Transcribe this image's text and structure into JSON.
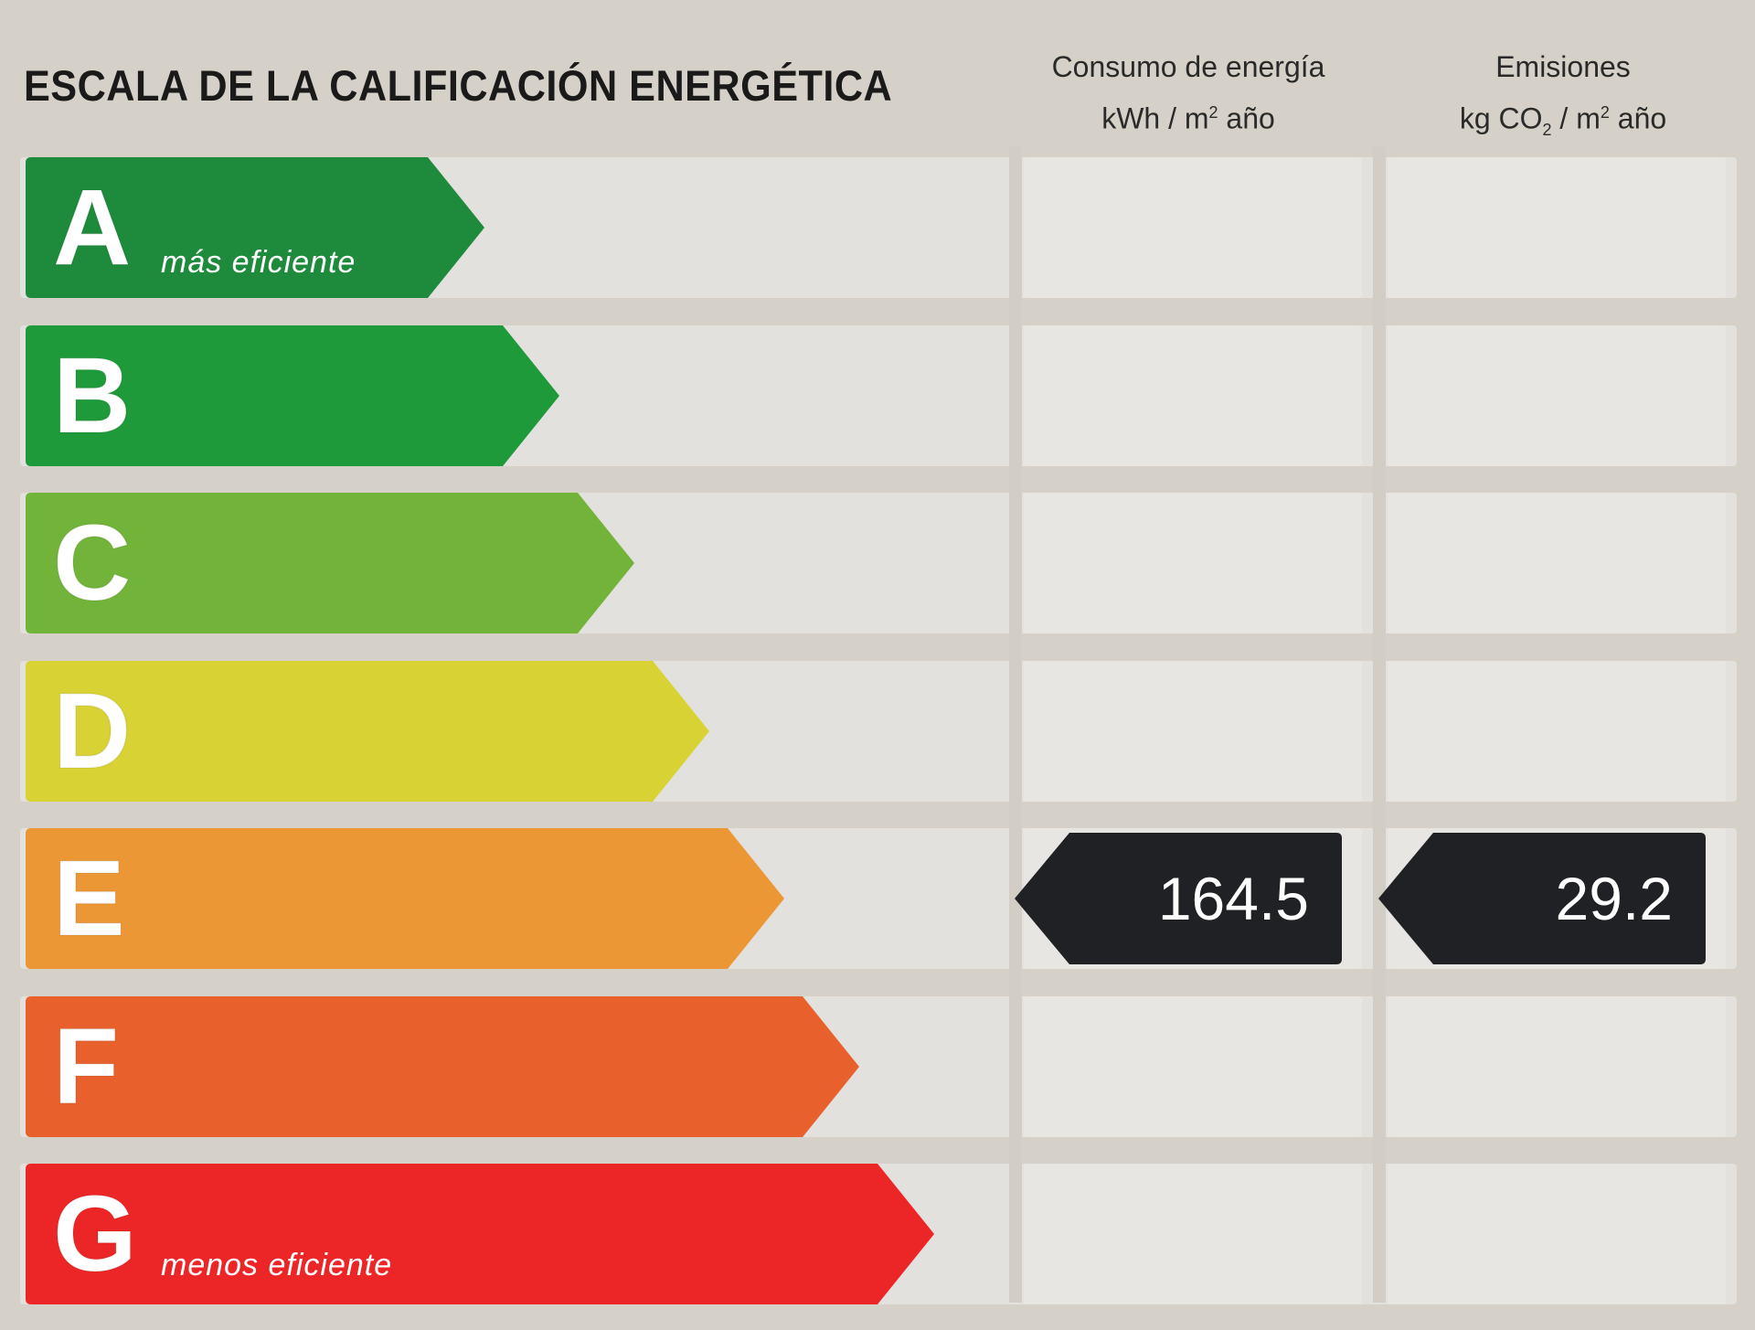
{
  "header": {
    "title": "ESCALA DE LA CALIFICACIÓN ENERGÉTICA",
    "consumption_label": "Consumo de energía",
    "consumption_unit_pre": "kWh / m",
    "consumption_unit_sup": "2",
    "consumption_unit_post": " año",
    "emissions_label": "Emisiones",
    "emissions_unit_pre": "kg CO",
    "emissions_unit_sub": "2",
    "emissions_unit_mid": " / m",
    "emissions_unit_sup": "2",
    "emissions_unit_post": " año"
  },
  "classes": [
    {
      "letter": "A",
      "color": "#1e8a3c",
      "note": "más eficiente"
    },
    {
      "letter": "B",
      "color": "#1f9a3a",
      "note": ""
    },
    {
      "letter": "C",
      "color": "#72b33a",
      "note": ""
    },
    {
      "letter": "D",
      "color": "#d8d235",
      "note": ""
    },
    {
      "letter": "E",
      "color": "#ec9735",
      "note": ""
    },
    {
      "letter": "F",
      "color": "#e8612c",
      "note": ""
    },
    {
      "letter": "G",
      "color": "#ec2626",
      "note": "menos eficiente"
    }
  ],
  "rating": {
    "class": "E",
    "consumption_value": "164.5",
    "emissions_value": "29.2",
    "tag_color": "#1f2124"
  }
}
